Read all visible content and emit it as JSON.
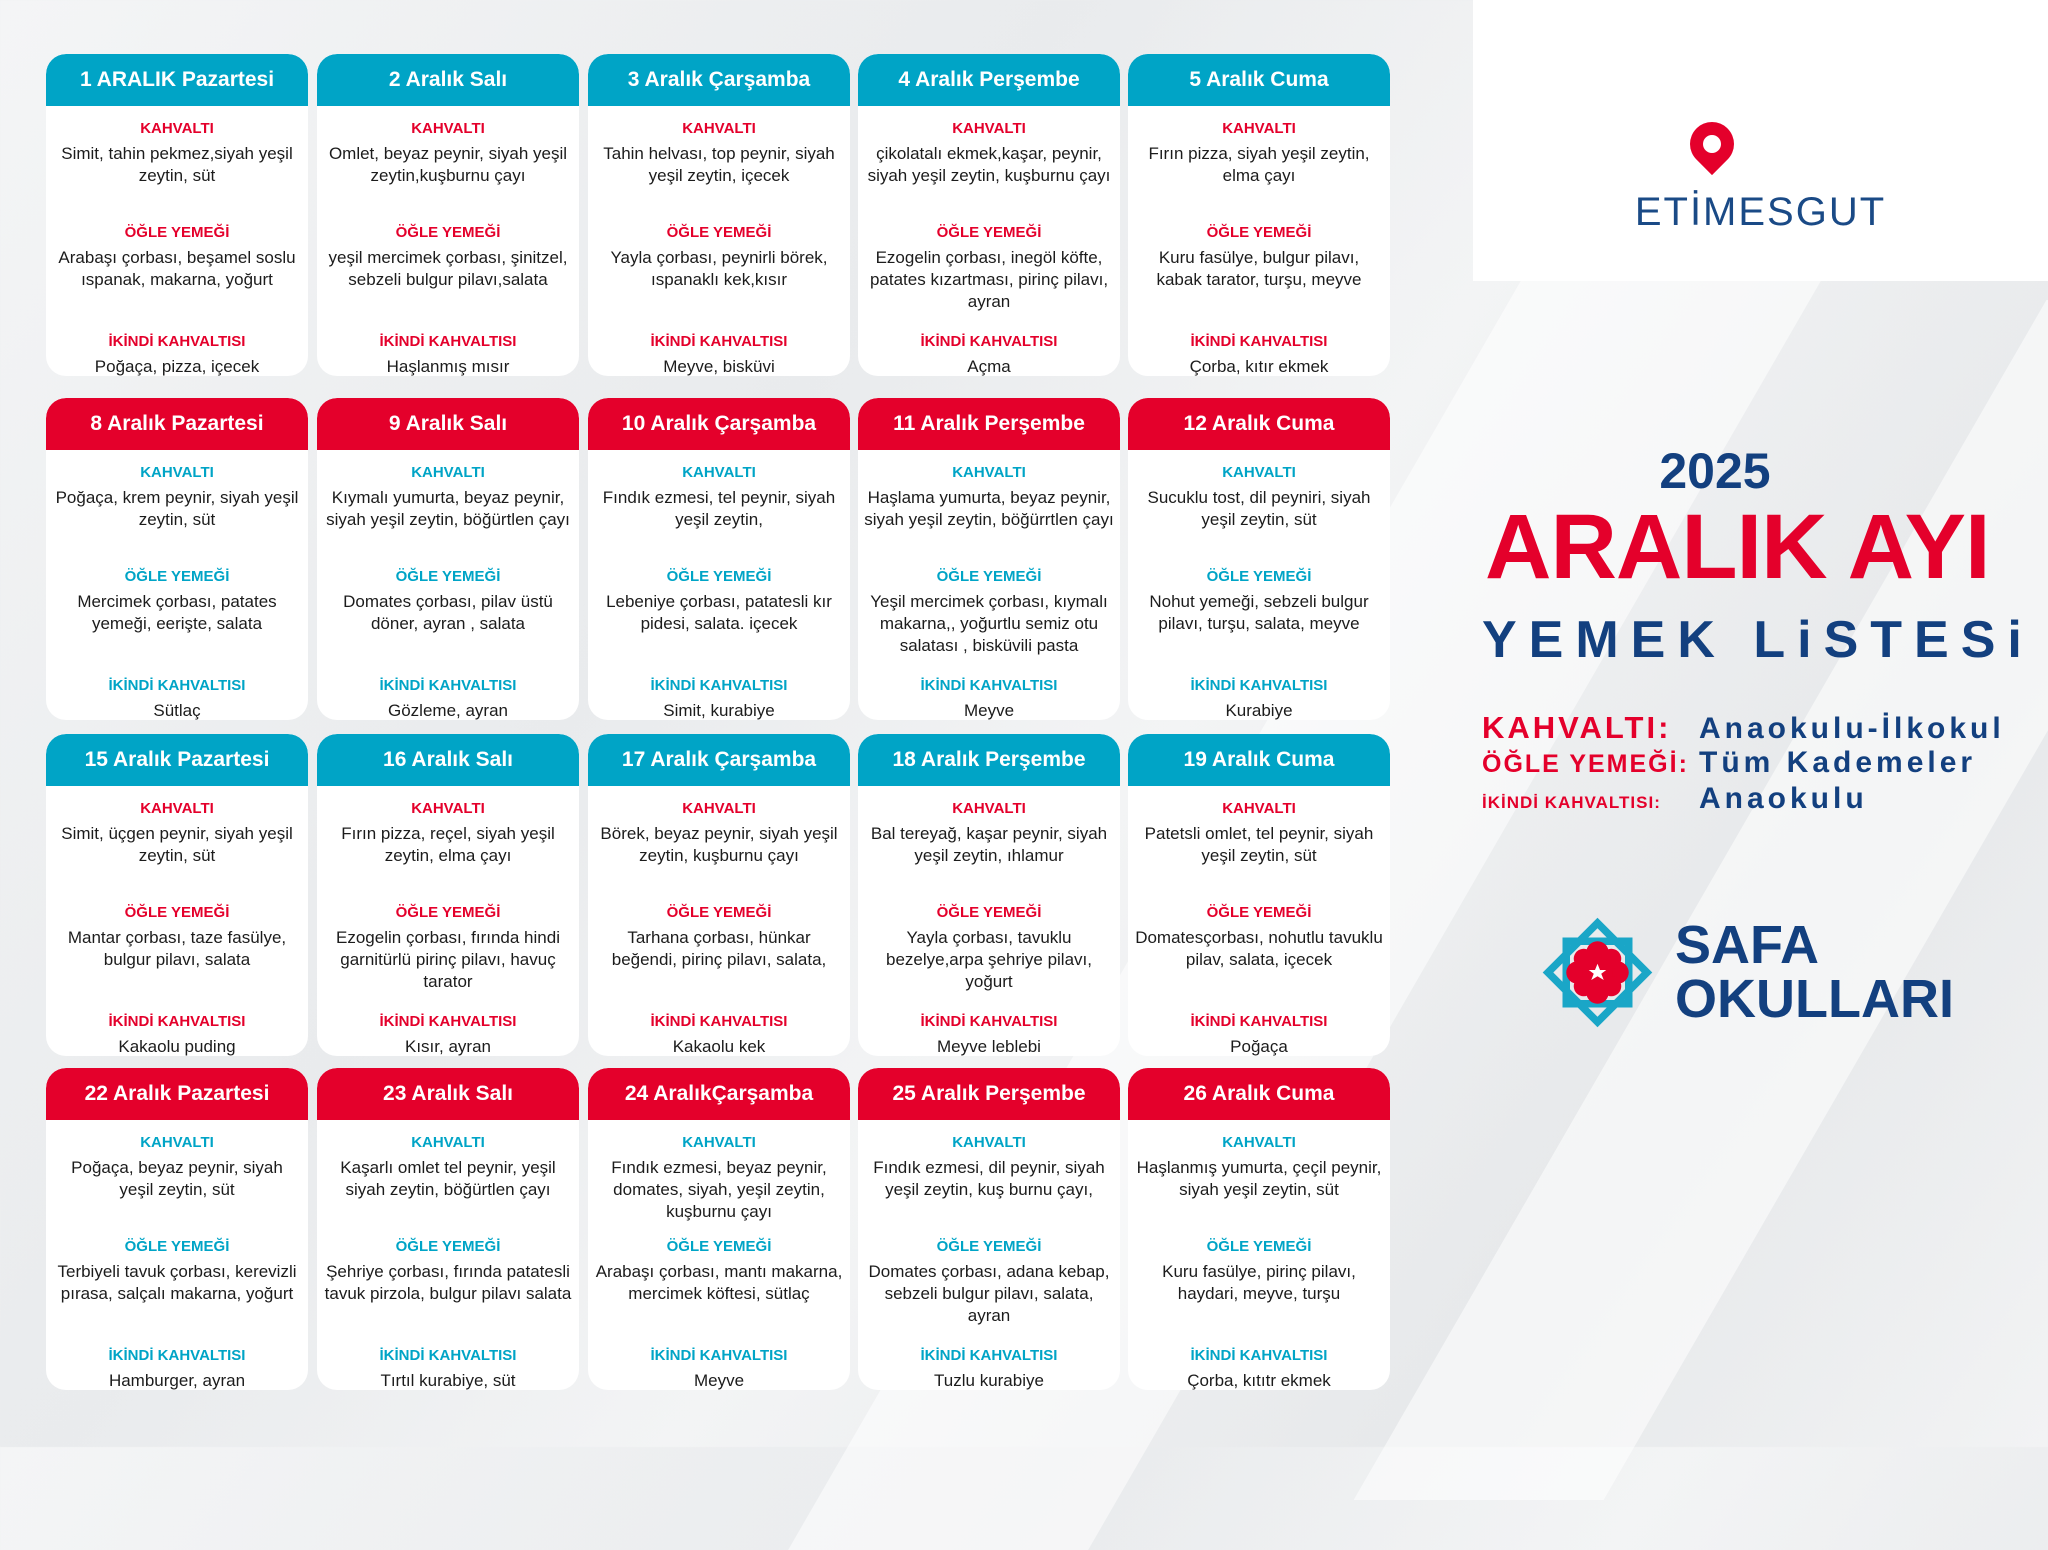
{
  "labels": {
    "breakfast": "KAHVALTI",
    "lunch": "ÖĞLE YEMEĞİ",
    "snack": "İKİNDİ KAHVALTISI"
  },
  "colors": {
    "teal": "#00a4c6",
    "red": "#e4002b",
    "navy": "#13407f"
  },
  "weeks": [
    {
      "header_color": "teal",
      "label_color": "red",
      "days": [
        {
          "title": "1 ARALIK Pazartesi",
          "breakfast": "Simit, tahin pekmez,siyah yeşil zeytin, süt",
          "lunch": "Arabaşı çorbası, beşamel soslu ıspanak, makarna, yoğurt",
          "snack": "Poğaça, pizza, içecek"
        },
        {
          "title": "2 Aralık  Salı",
          "breakfast": "Omlet, beyaz peynir, siyah yeşil zeytin,kuşburnu çayı",
          "lunch": "yeşil mercimek çorbası, şinitzel, sebzeli bulgur pilavı,salata",
          "snack": "Haşlanmış mısır"
        },
        {
          "title": "3  Aralık Çarşamba",
          "breakfast": "Tahin helvası, top peynir, siyah yeşil zeytin, içecek",
          "lunch": "Yayla çorbası, peynirli börek, ıspanaklı kek,kısır",
          "snack": "Meyve, bisküvi"
        },
        {
          "title": "4 Aralık  Perşembe",
          "breakfast": "çikolatalı ekmek,kaşar, peynir, siyah yeşil zeytin, kuşburnu çayı",
          "lunch": "Ezogelin çorbası, inegöl köfte, patates kızartması, pirinç pilavı, ayran",
          "snack": "Açma"
        },
        {
          "title": "5 Aralık  Cuma",
          "breakfast": "Fırın pizza, siyah yeşil zeytin, elma çayı",
          "lunch": "Kuru fasülye, bulgur  pilavı, kabak tarator, turşu, meyve",
          "snack": "Çorba, kıtır ekmek"
        }
      ]
    },
    {
      "header_color": "red",
      "label_color": "teal",
      "days": [
        {
          "title": "8 Aralık Pazartesi",
          "breakfast": "Poğaça, krem peynir, siyah yeşil zeytin, süt",
          "lunch": "Mercimek çorbası, patates yemeği, eerişte, salata",
          "snack": "Sütlaç"
        },
        {
          "title": "9 Aralık  Salı",
          "breakfast": "Kıymalı yumurta, beyaz peynir, siyah yeşil zeytin, böğürtlen çayı",
          "lunch": "Domates çorbası, pilav üstü döner, ayran , salata",
          "snack": "Gözleme, ayran"
        },
        {
          "title": "10 Aralık Çarşamba",
          "breakfast": "Fındık ezmesi, tel peynir, siyah yeşil zeytin,",
          "lunch": "Lebeniye çorbası, patatesli kır pidesi, salata. içecek",
          "snack": "Simit, kurabiye"
        },
        {
          "title": "11 Aralık  Perşembe",
          "breakfast": "Haşlama yumurta, beyaz peynir, siyah yeşil zeytin, böğürrtlen çayı",
          "lunch": "Yeşil mercimek çorbası, kıymalı makarna,, yoğurtlu semiz otu salatası , bisküvili pasta",
          "snack": "Meyve"
        },
        {
          "title": "12 Aralık Cuma",
          "breakfast": "Sucuklu tost, dil peyniri, siyah yeşil zeytin, süt",
          "lunch": "Nohut yemeği, sebzeli bulgur pilavı, turşu, salata, meyve",
          "snack": "Kurabiye"
        }
      ]
    },
    {
      "header_color": "teal",
      "label_color": "red",
      "days": [
        {
          "title": "15 Aralık Pazartesi",
          "breakfast": "Simit, üçgen peynir, siyah yeşil zeytin, süt",
          "lunch": "Mantar çorbası, taze fasülye, bulgur pilavı, salata",
          "snack": "Kakaolu puding"
        },
        {
          "title": "16 Aralık Salı",
          "breakfast": "Fırın pizza, reçel, siyah yeşil zeytin, elma çayı",
          "lunch": "Ezogelin çorbası,  fırında hindi garnitürlü pirinç pilavı, havuç tarator",
          "snack": "Kısır, ayran"
        },
        {
          "title": "17  Aralık Çarşamba",
          "breakfast": "Börek, beyaz peynir, siyah yeşil zeytin, kuşburnu çayı",
          "lunch": "Tarhana çorbası, hünkar beğendi, pirinç pilavı, salata,",
          "snack": "Kakaolu kek"
        },
        {
          "title": "18 Aralık  Perşembe",
          "breakfast": "Bal tereyağ, kaşar peynir, siyah yeşil zeytin, ıhlamur",
          "lunch": "Yayla  çorbası, tavuklu bezelye,arpa şehriye pilavı, yoğurt",
          "snack": "Meyve leblebi"
        },
        {
          "title": "19 Aralık Cuma",
          "breakfast": "Patetsli omlet, tel peynir, siyah yeşil zeytin, süt",
          "lunch": "Domatesçorbası, nohutlu tavuklu pilav, salata, içecek",
          "snack": "Poğaça"
        }
      ]
    },
    {
      "header_color": "red",
      "label_color": "teal",
      "days": [
        {
          "title": "22 Aralık Pazartesi",
          "breakfast": "Poğaça, beyaz peynir, siyah yeşil zeytin, süt",
          "lunch": "Terbiyeli tavuk çorbası, kerevizli pırasa, salçalı makarna, yoğurt",
          "snack": "Hamburger, ayran"
        },
        {
          "title": "23 Aralık Salı",
          "breakfast": "Kaşarlı omlet tel peynir,  yeşil siyah zeytin, böğürtlen çayı",
          "lunch": "Şehriye çorbası, fırında patatesli tavuk pirzola, bulgur pilavı salata",
          "snack": "Tırtıl kurabiye, süt"
        },
        {
          "title": "24 AralıkÇarşamba",
          "breakfast": "Fındık ezmesi, beyaz peynir, domates, siyah, yeşil zeytin, kuşburnu çayı",
          "lunch": "Arabaşı çorbası, mantı makarna, mercimek köftesi, sütlaç",
          "snack": "Meyve"
        },
        {
          "title": "25 Aralık Perşembe",
          "breakfast": "Fındık ezmesi, dil peynir, siyah yeşil zeytin, kuş burnu çayı,",
          "lunch": "Domates çorbası, adana kebap, sebzeli bulgur pilavı, salata, ayran",
          "snack": "Tuzlu kurabiye"
        },
        {
          "title": "26 Aralık Cuma",
          "breakfast": "Haşlanmış yumurta, çeçil peynir, siyah yeşil zeytin, süt",
          "lunch": "Kuru fasülye, pirinç pilavı, haydari, meyve, turşu",
          "snack": "Çorba, kıtıtr ekmek"
        }
      ]
    }
  ],
  "side": {
    "district_logo": "ETİMESGUT",
    "year": "2025",
    "title": "ARALIK AYI",
    "subtitle": "YEMEK LiSTESi",
    "legend": [
      {
        "key": "KAHVALTI:",
        "value": "Anaokulu-İlkokul"
      },
      {
        "key": "ÖĞLE YEMEĞİ:",
        "value": "Tüm Kademeler"
      },
      {
        "key": "İKİNDİ KAHVALTISI:",
        "value": "Anaokulu"
      }
    ],
    "school_logo_line1": "SAFA",
    "school_logo_line2": "OKULLARI"
  }
}
